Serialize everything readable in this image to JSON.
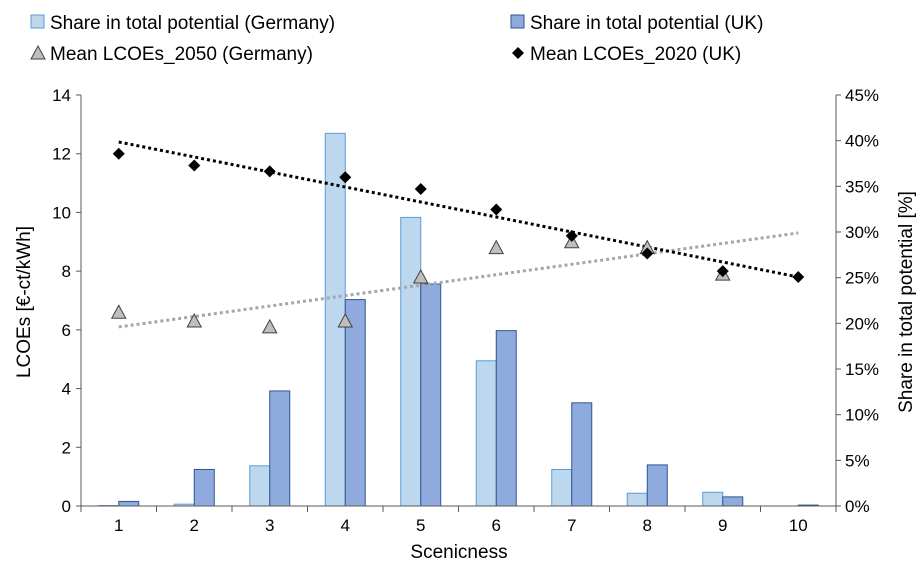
{
  "chart_data": {
    "type": "bar",
    "xlabel": "Scenicness",
    "ylabel": "LCOEs [€-ct/kWh]",
    "y2label": "Share in total potential [%]",
    "categories": [
      "1",
      "2",
      "3",
      "4",
      "5",
      "6",
      "7",
      "8",
      "9",
      "10"
    ],
    "ylim": [
      0,
      14
    ],
    "y2lim": [
      0,
      45
    ],
    "yticks": [
      "0",
      "2",
      "4",
      "6",
      "8",
      "10",
      "12",
      "14"
    ],
    "y2ticks": [
      "0%",
      "5%",
      "10%",
      "15%",
      "20%",
      "25%",
      "30%",
      "35%",
      "40%",
      "45%"
    ],
    "bar_series": [
      {
        "name": "Share in total potential (Germany)",
        "axis": "right",
        "unit": "%",
        "color": "#bdd7ee",
        "values": [
          0.05,
          0.2,
          4.4,
          40.8,
          31.6,
          15.9,
          4.0,
          1.4,
          1.5,
          0.0
        ]
      },
      {
        "name": "Share in total potential (UK)",
        "axis": "right",
        "unit": "%",
        "color": "#8faadc",
        "values": [
          0.5,
          4.0,
          12.6,
          22.6,
          24.3,
          19.2,
          11.3,
          4.5,
          1.0,
          0.1
        ]
      }
    ],
    "marker_series": [
      {
        "name": "Mean LCOEs_2050 (Germany)",
        "axis": "left",
        "marker": "triangle",
        "color": "#bfbfbf",
        "values": [
          6.6,
          6.3,
          6.1,
          6.3,
          7.8,
          8.8,
          9.0,
          8.8,
          7.9,
          null
        ]
      },
      {
        "name": "Mean LCOEs_2020 (UK)",
        "axis": "left",
        "marker": "diamond",
        "color": "#000000",
        "values": [
          12.0,
          11.6,
          11.4,
          11.2,
          10.8,
          10.1,
          9.2,
          8.6,
          8.0,
          7.8
        ]
      }
    ],
    "trendlines": [
      {
        "series": "Mean LCOEs_2050 (Germany)",
        "style": "dotted",
        "color": "#a6a6a6",
        "start": 6.1,
        "end": 9.3
      },
      {
        "series": "Mean LCOEs_2020 (UK)",
        "style": "dotted",
        "color": "#000000",
        "start": 12.4,
        "end": 7.8
      }
    ],
    "grid": false,
    "legend_position": "top"
  }
}
